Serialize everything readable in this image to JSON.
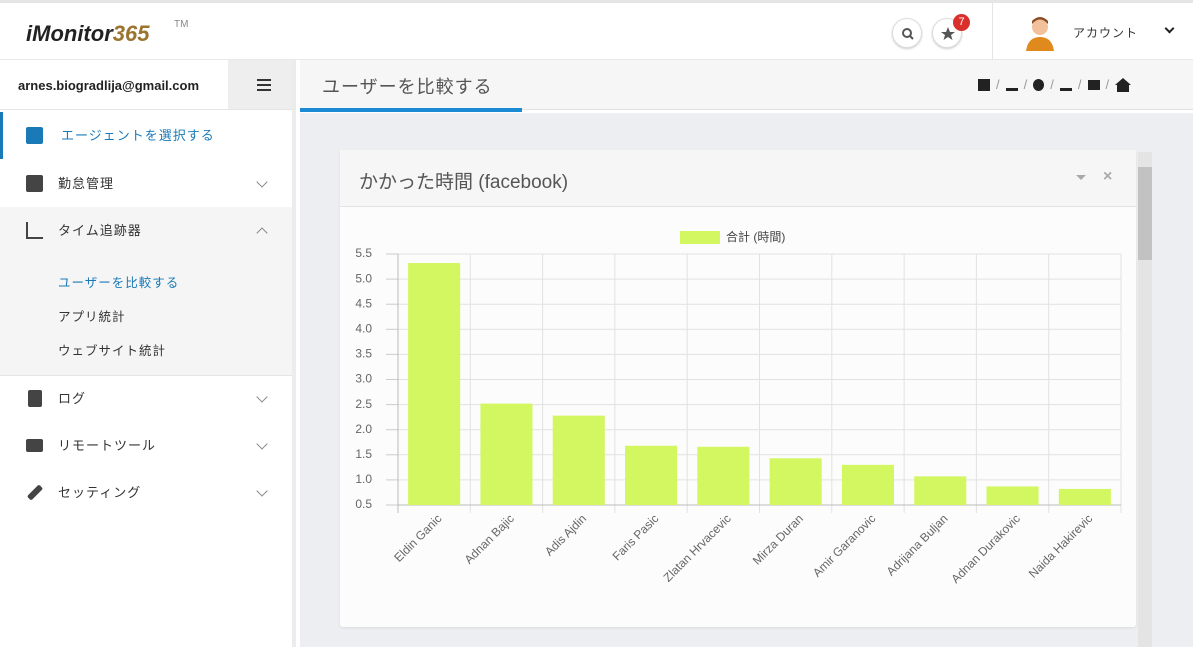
{
  "header": {
    "logo_main": "iMonitor",
    "logo_accent": "365",
    "trademark": "TM",
    "notification_count": 7,
    "account": "アカウント"
  },
  "sidebar": {
    "user": "arnes.biogradlija@gmail.com",
    "menu": [
      {
        "label": "エージェントを選択する"
      },
      {
        "label": "勤怠管理"
      },
      {
        "label": "タイム追跡器",
        "submenu": [
          "ユーザーを比較する",
          "アプリ統計",
          "ウェブサイト統計"
        ]
      },
      {
        "label": "ログ"
      },
      {
        "label": "リモートツール"
      },
      {
        "label": "セッティング"
      }
    ]
  },
  "page": {
    "title": "ユーザーを比較する",
    "separator": "/"
  },
  "panel": {
    "title": "かかった時間 (facebook)"
  },
  "chart_data": {
    "type": "bar",
    "categories": [
      "Eldin Ganic",
      "Adnan Bajic",
      "Adis Ajdin",
      "Faris Pasic",
      "Zlatan Hrvacevic",
      "Mirza Duran",
      "Amir Garanovic",
      "Adrijana Buljan",
      "Adnan Durakovic",
      "Naida Hakirevic"
    ],
    "series": [
      {
        "name": "合計 (時間)",
        "color": "#d2f760",
        "values": [
          5.32,
          2.52,
          2.28,
          1.68,
          1.66,
          1.43,
          1.3,
          1.07,
          0.87,
          0.82
        ]
      }
    ],
    "ylim": [
      0.5,
      5.5
    ],
    "yticks": [
      0.5,
      {
        "value": 1,
        "label": "1.0"
      },
      1.5,
      {
        "value": 2,
        "label": "2.0"
      },
      2.5,
      {
        "value": 3,
        "label": "3.0"
      },
      3.5,
      {
        "value": 4,
        "label": "4.0"
      },
      4.5,
      {
        "value": 5,
        "label": "5.0"
      },
      5.5
    ],
    "grid": true
  }
}
